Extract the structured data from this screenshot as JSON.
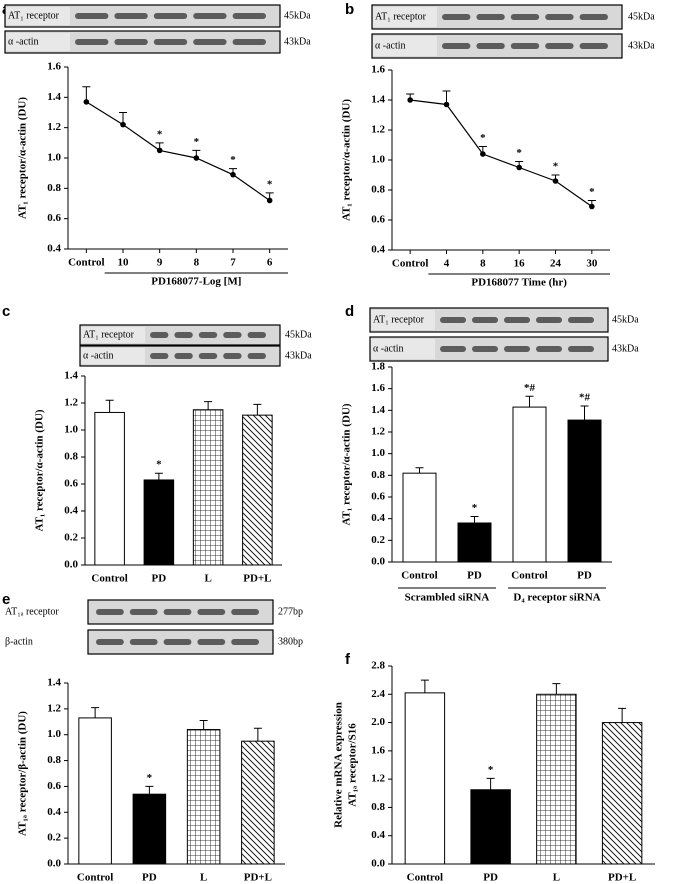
{
  "chart_data": [
    {
      "panel": "a",
      "type": "line",
      "categories": [
        "Control",
        "10",
        "9",
        "8",
        "7",
        "6"
      ],
      "values": [
        1.37,
        1.22,
        1.05,
        1.0,
        0.89,
        0.72
      ],
      "errors": [
        0.1,
        0.08,
        0.05,
        0.05,
        0.04,
        0.05
      ],
      "significance": [
        null,
        null,
        "*",
        "*",
        "*",
        "*"
      ],
      "color": "#000000",
      "ylim": [
        0.4,
        1.6
      ],
      "yticks": [
        0.4,
        0.6,
        0.8,
        {
          "value": 1,
          "label": "1.0"
        },
        1.2,
        1.4,
        1.6
      ],
      "ylabel": "AT₁ receptor/α-actin (DU)",
      "xlabel": "PD168077-Log [M]",
      "blot": {
        "labels": [
          "AT₁ receptor",
          "α -actin"
        ],
        "sizes": [
          "45kDa",
          "43kDa"
        ]
      }
    },
    {
      "panel": "b",
      "type": "line",
      "categories": [
        "Control",
        "4",
        "8",
        "16",
        "24",
        "30"
      ],
      "values": [
        1.4,
        1.37,
        1.04,
        0.95,
        0.86,
        0.69
      ],
      "errors": [
        0.04,
        0.09,
        0.05,
        0.04,
        0.04,
        0.04
      ],
      "significance": [
        null,
        null,
        "*",
        "*",
        "*",
        "*"
      ],
      "color": "#000000",
      "ylim": [
        0.4,
        1.6
      ],
      "yticks": [
        0.4,
        0.6,
        0.8,
        {
          "value": 1,
          "label": "1.0"
        },
        1.2,
        1.4,
        1.6
      ],
      "ylabel": "AT₁ receptor/α-actin (DU)",
      "xlabel": "PD168077 Time (hr)",
      "blot": {
        "labels": [
          "AT₁ receptor",
          "α -actin"
        ],
        "sizes": [
          "45kDa",
          "43kDa"
        ]
      }
    },
    {
      "panel": "c",
      "type": "bar",
      "categories": [
        "Control",
        "PD",
        "L",
        "PD+L"
      ],
      "values": [
        1.13,
        0.63,
        1.15,
        1.11
      ],
      "errors": [
        0.09,
        0.05,
        0.06,
        0.08
      ],
      "significance": [
        null,
        "*",
        null,
        null
      ],
      "fills": [
        "white",
        "black",
        "grid",
        "hatch"
      ],
      "ylim": [
        0,
        1.4
      ],
      "yticks": [
        {
          "value": 0,
          "label": "0.0"
        },
        0.2,
        0.4,
        0.6,
        0.8,
        {
          "value": 1,
          "label": "1.0"
        },
        1.2,
        1.4
      ],
      "ylabel": "AT₁ receptor/α-actin (DU)",
      "blot": {
        "labels": [
          "AT₁ receptor",
          "α -actin"
        ],
        "sizes": [
          "45kDa",
          "43kDa"
        ]
      }
    },
    {
      "panel": "d",
      "type": "bar",
      "categories": [
        "Control",
        "PD",
        "Control",
        "PD"
      ],
      "values": [
        0.82,
        0.36,
        1.43,
        1.31
      ],
      "errors": [
        0.05,
        0.06,
        0.1,
        0.13
      ],
      "significance": [
        null,
        "*",
        "*#",
        "*#"
      ],
      "fills": [
        "white",
        "black",
        "white",
        "black"
      ],
      "groups": [
        "Scrambled siRNA",
        "D₄ receptor siRNA"
      ],
      "ylim": [
        0,
        1.8
      ],
      "yticks": [
        {
          "value": 0,
          "label": "0.0"
        },
        0.2,
        0.4,
        0.6,
        0.8,
        {
          "value": 1,
          "label": "1.0"
        },
        1.2,
        1.4,
        1.6,
        1.8
      ],
      "ylabel": "AT₁ receptor/α-actin (DU)",
      "blot": {
        "labels": [
          "AT₁ receptor",
          "α -actin"
        ],
        "sizes": [
          "45kDa",
          "43kDa"
        ]
      }
    },
    {
      "panel": "e",
      "type": "bar",
      "categories": [
        "Control",
        "PD",
        "L",
        "PD+L"
      ],
      "values": [
        1.13,
        0.54,
        1.04,
        0.95
      ],
      "errors": [
        0.08,
        0.06,
        0.07,
        0.1
      ],
      "significance": [
        null,
        "*",
        null,
        null
      ],
      "fills": [
        "white",
        "black",
        "grid",
        "hatch"
      ],
      "ylim": [
        0,
        1.4
      ],
      "yticks": [
        {
          "value": 0,
          "label": "0.0"
        },
        0.2,
        0.4,
        0.6,
        0.8,
        {
          "value": 1,
          "label": "1.0"
        },
        1.2,
        1.4
      ],
      "ylabel": "AT₁ₐ receptor/β-actin (DU)",
      "blot": {
        "labels": [
          "AT₁ₐ receptor",
          "β-actin"
        ],
        "sizes": [
          "277bp",
          "380bp"
        ]
      }
    },
    {
      "panel": "f",
      "type": "bar",
      "categories": [
        "Control",
        "PD",
        "L",
        "PD+L"
      ],
      "values": [
        2.42,
        1.05,
        2.4,
        2.0
      ],
      "errors": [
        0.18,
        0.16,
        0.15,
        0.2
      ],
      "significance": [
        null,
        "*",
        null,
        null
      ],
      "fills": [
        "white",
        "black",
        "grid",
        "hatch"
      ],
      "ylim": [
        0,
        2.8
      ],
      "yticks": [
        {
          "value": 0,
          "label": "0.0"
        },
        0.4,
        0.8,
        1.2,
        1.6,
        {
          "value": 2,
          "label": "2.0"
        },
        2.4,
        2.8
      ],
      "ylabel": "Relative mRNA expression",
      "ylabel2": "AT₁ₐ receptor/S16"
    }
  ]
}
